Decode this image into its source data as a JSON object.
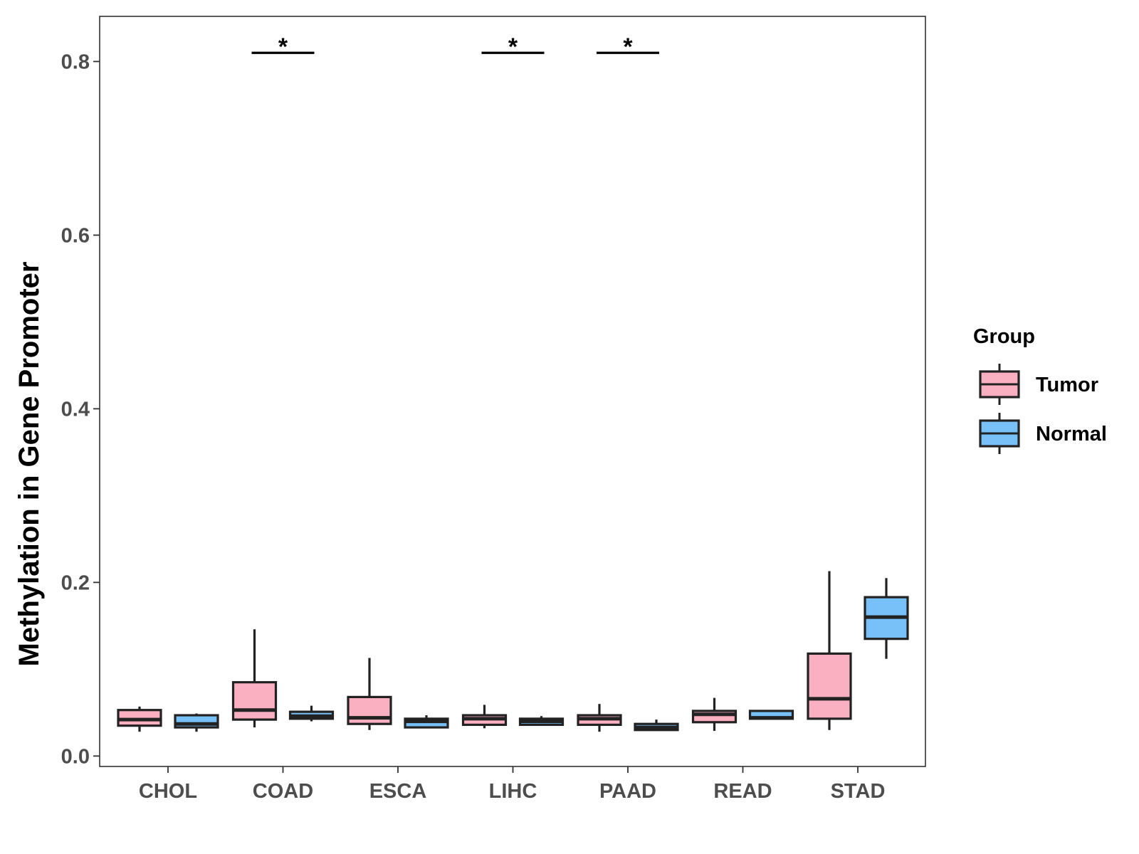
{
  "chart_data": {
    "type": "boxplot",
    "title": "",
    "xlabel": "",
    "ylabel": "Methylation in Gene Promoter",
    "ylim": [
      -0.012,
      0.852
    ],
    "yticks": [
      0.0,
      0.2,
      0.4,
      0.6,
      0.8
    ],
    "ytick_labels": [
      "0.0",
      "0.2",
      "0.4",
      "0.6",
      "0.8"
    ],
    "categories": [
      "CHOL",
      "COAD",
      "ESCA",
      "LIHC",
      "PAAD",
      "READ",
      "STAD"
    ],
    "grid": false,
    "legend": {
      "title": "Group",
      "placement": "right",
      "entries": [
        {
          "name": "Tumor",
          "color": "#FBB0C2"
        },
        {
          "name": "Normal",
          "color": "#78C1F8"
        }
      ]
    },
    "series": [
      {
        "name": "Tumor",
        "color": "#FBB0C2",
        "boxes": [
          {
            "category": "CHOL",
            "min": 0.028,
            "q1": 0.035,
            "median": 0.042,
            "q3": 0.053,
            "max": 0.057
          },
          {
            "category": "COAD",
            "min": 0.033,
            "q1": 0.042,
            "median": 0.053,
            "q3": 0.085,
            "max": 0.146
          },
          {
            "category": "ESCA",
            "min": 0.03,
            "q1": 0.037,
            "median": 0.044,
            "q3": 0.068,
            "max": 0.113
          },
          {
            "category": "LIHC",
            "min": 0.032,
            "q1": 0.036,
            "median": 0.043,
            "q3": 0.047,
            "max": 0.059
          },
          {
            "category": "PAAD",
            "min": 0.028,
            "q1": 0.036,
            "median": 0.043,
            "q3": 0.047,
            "max": 0.06
          },
          {
            "category": "READ",
            "min": 0.029,
            "q1": 0.039,
            "median": 0.048,
            "q3": 0.052,
            "max": 0.067
          },
          {
            "category": "STAD",
            "min": 0.03,
            "q1": 0.043,
            "median": 0.066,
            "q3": 0.118,
            "max": 0.213
          }
        ]
      },
      {
        "name": "Normal",
        "color": "#78C1F8",
        "boxes": [
          {
            "category": "CHOL",
            "min": 0.028,
            "q1": 0.033,
            "median": 0.037,
            "q3": 0.047,
            "max": 0.049
          },
          {
            "category": "COAD",
            "min": 0.04,
            "q1": 0.043,
            "median": 0.046,
            "q3": 0.051,
            "max": 0.058
          },
          {
            "category": "ESCA",
            "min": 0.033,
            "q1": 0.033,
            "median": 0.04,
            "q3": 0.043,
            "max": 0.047
          },
          {
            "category": "LIHC",
            "min": 0.035,
            "q1": 0.036,
            "median": 0.04,
            "q3": 0.043,
            "max": 0.046
          },
          {
            "category": "PAAD",
            "min": 0.03,
            "q1": 0.03,
            "median": 0.033,
            "q3": 0.037,
            "max": 0.042
          },
          {
            "category": "READ",
            "min": 0.043,
            "q1": 0.043,
            "median": 0.044,
            "q3": 0.052,
            "max": 0.053
          },
          {
            "category": "STAD",
            "min": 0.112,
            "q1": 0.135,
            "median": 0.16,
            "q3": 0.183,
            "max": 0.205
          }
        ]
      }
    ],
    "annotations": [
      {
        "category": "COAD",
        "text": "*",
        "y": 0.81
      },
      {
        "category": "LIHC",
        "text": "*",
        "y": 0.81
      },
      {
        "category": "PAAD",
        "text": "*",
        "y": 0.81
      }
    ]
  }
}
